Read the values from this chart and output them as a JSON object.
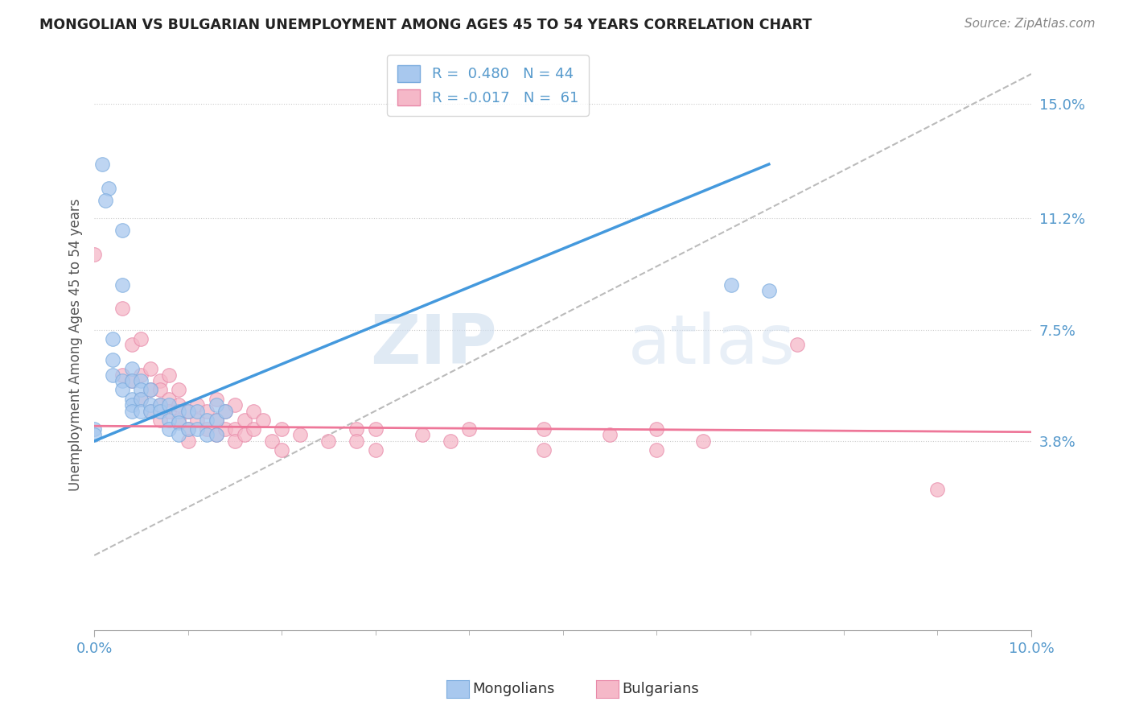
{
  "title": "MONGOLIAN VS BULGARIAN UNEMPLOYMENT AMONG AGES 45 TO 54 YEARS CORRELATION CHART",
  "source": "Source: ZipAtlas.com",
  "ylabel": "Unemployment Among Ages 45 to 54 years",
  "xlim": [
    0.0,
    0.1
  ],
  "ylim": [
    -0.025,
    0.165
  ],
  "xticks": [
    0.0,
    0.1
  ],
  "xtick_labels": [
    "0.0%",
    "10.0%"
  ],
  "ytick_labels": [
    "3.8%",
    "7.5%",
    "11.2%",
    "15.0%"
  ],
  "ytick_values": [
    0.038,
    0.075,
    0.112,
    0.15
  ],
  "mongolian_color": "#a8c8ee",
  "mongolian_edge": "#7aabde",
  "bulgarian_color": "#f5b8c8",
  "bulgarian_edge": "#e888a8",
  "line_mongolian_color": "#4499dd",
  "line_bulgarian_color": "#ee7799",
  "dashed_color": "#bbbbbb",
  "mongolian_R": 0.48,
  "mongolian_N": 44,
  "bulgarian_R": -0.017,
  "bulgarian_N": 61,
  "mongolian_points": [
    [
      0.0008,
      0.13
    ],
    [
      0.0015,
      0.122
    ],
    [
      0.0012,
      0.118
    ],
    [
      0.003,
      0.108
    ],
    [
      0.003,
      0.09
    ],
    [
      0.002,
      0.072
    ],
    [
      0.002,
      0.065
    ],
    [
      0.002,
      0.06
    ],
    [
      0.003,
      0.058
    ],
    [
      0.003,
      0.055
    ],
    [
      0.004,
      0.062
    ],
    [
      0.004,
      0.058
    ],
    [
      0.004,
      0.052
    ],
    [
      0.004,
      0.05
    ],
    [
      0.004,
      0.048
    ],
    [
      0.005,
      0.058
    ],
    [
      0.005,
      0.055
    ],
    [
      0.005,
      0.052
    ],
    [
      0.005,
      0.048
    ],
    [
      0.006,
      0.055
    ],
    [
      0.006,
      0.05
    ],
    [
      0.006,
      0.048
    ],
    [
      0.007,
      0.05
    ],
    [
      0.007,
      0.048
    ],
    [
      0.008,
      0.05
    ],
    [
      0.008,
      0.045
    ],
    [
      0.008,
      0.042
    ],
    [
      0.009,
      0.048
    ],
    [
      0.009,
      0.044
    ],
    [
      0.009,
      0.04
    ],
    [
      0.01,
      0.048
    ],
    [
      0.01,
      0.042
    ],
    [
      0.011,
      0.048
    ],
    [
      0.011,
      0.042
    ],
    [
      0.012,
      0.045
    ],
    [
      0.012,
      0.04
    ],
    [
      0.013,
      0.05
    ],
    [
      0.013,
      0.045
    ],
    [
      0.013,
      0.04
    ],
    [
      0.014,
      0.048
    ],
    [
      0.0,
      0.042
    ],
    [
      0.0,
      0.04
    ],
    [
      0.068,
      0.09
    ],
    [
      0.072,
      0.088
    ]
  ],
  "bulgarian_points": [
    [
      0.0,
      0.1
    ],
    [
      0.003,
      0.082
    ],
    [
      0.003,
      0.06
    ],
    [
      0.004,
      0.07
    ],
    [
      0.004,
      0.058
    ],
    [
      0.005,
      0.072
    ],
    [
      0.005,
      0.06
    ],
    [
      0.005,
      0.052
    ],
    [
      0.006,
      0.062
    ],
    [
      0.006,
      0.055
    ],
    [
      0.006,
      0.048
    ],
    [
      0.007,
      0.058
    ],
    [
      0.007,
      0.055
    ],
    [
      0.007,
      0.05
    ],
    [
      0.007,
      0.045
    ],
    [
      0.008,
      0.06
    ],
    [
      0.008,
      0.052
    ],
    [
      0.008,
      0.048
    ],
    [
      0.009,
      0.055
    ],
    [
      0.009,
      0.05
    ],
    [
      0.009,
      0.045
    ],
    [
      0.01,
      0.048
    ],
    [
      0.01,
      0.042
    ],
    [
      0.01,
      0.038
    ],
    [
      0.011,
      0.05
    ],
    [
      0.011,
      0.045
    ],
    [
      0.012,
      0.048
    ],
    [
      0.012,
      0.042
    ],
    [
      0.013,
      0.052
    ],
    [
      0.013,
      0.045
    ],
    [
      0.013,
      0.04
    ],
    [
      0.014,
      0.048
    ],
    [
      0.014,
      0.042
    ],
    [
      0.015,
      0.05
    ],
    [
      0.015,
      0.042
    ],
    [
      0.015,
      0.038
    ],
    [
      0.016,
      0.045
    ],
    [
      0.016,
      0.04
    ],
    [
      0.017,
      0.048
    ],
    [
      0.017,
      0.042
    ],
    [
      0.018,
      0.045
    ],
    [
      0.019,
      0.038
    ],
    [
      0.02,
      0.042
    ],
    [
      0.02,
      0.035
    ],
    [
      0.022,
      0.04
    ],
    [
      0.025,
      0.038
    ],
    [
      0.028,
      0.042
    ],
    [
      0.028,
      0.038
    ],
    [
      0.03,
      0.042
    ],
    [
      0.03,
      0.035
    ],
    [
      0.035,
      0.04
    ],
    [
      0.038,
      0.038
    ],
    [
      0.04,
      0.042
    ],
    [
      0.048,
      0.042
    ],
    [
      0.048,
      0.035
    ],
    [
      0.055,
      0.04
    ],
    [
      0.06,
      0.042
    ],
    [
      0.06,
      0.035
    ],
    [
      0.065,
      0.038
    ],
    [
      0.075,
      0.07
    ],
    [
      0.09,
      0.022
    ]
  ],
  "mongolian_line_x": [
    0.0,
    0.072
  ],
  "mongolian_line_y": [
    0.038,
    0.13
  ],
  "bulgarian_line_x": [
    0.0,
    0.1
  ],
  "bulgarian_line_y": [
    0.043,
    0.041
  ],
  "dashed_line_x": [
    0.0,
    0.1
  ],
  "dashed_line_y": [
    0.0,
    0.16
  ],
  "watermark_zip": "ZIP",
  "watermark_atlas": "atlas",
  "background_color": "#ffffff",
  "grid_color": "#cccccc"
}
